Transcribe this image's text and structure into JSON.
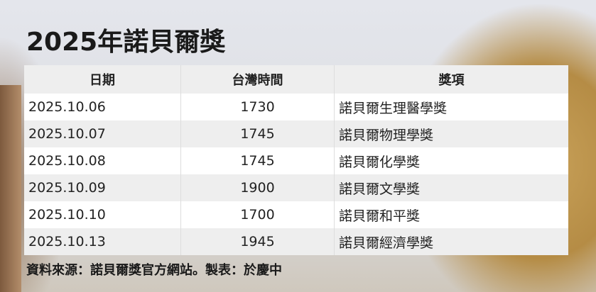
{
  "title": "2025年諾貝爾獎",
  "table": {
    "headers": [
      "日期",
      "台灣時間",
      "獎項"
    ],
    "rows": [
      [
        "2025.10.06",
        "1730",
        "諾貝爾生理醫學獎"
      ],
      [
        "2025.10.07",
        "1745",
        "諾貝爾物理學獎"
      ],
      [
        "2025.10.08",
        "1745",
        "諾貝爾化學獎"
      ],
      [
        "2025.10.09",
        "1900",
        "諾貝爾文學獎"
      ],
      [
        "2025.10.10",
        "1700",
        "諾貝爾和平獎"
      ],
      [
        "2025.10.13",
        "1945",
        "諾貝爾經濟學獎"
      ]
    ]
  },
  "footnote": "資料來源：諾貝爾獎官方網站。製表：於慶中"
}
